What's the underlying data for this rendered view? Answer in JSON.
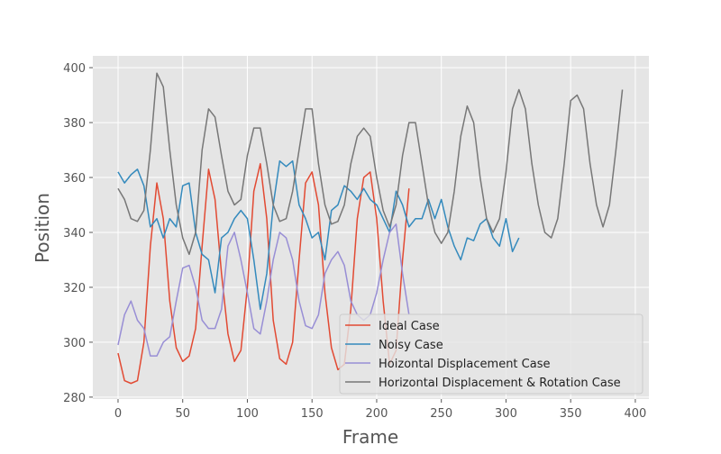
{
  "chart_data": {
    "type": "line",
    "xlabel": "Frame",
    "ylabel": "Position",
    "xlim": [
      -19.5,
      410.5
    ],
    "ylim": [
      279.3,
      404.3
    ],
    "xticks": [
      0,
      50,
      100,
      150,
      200,
      250,
      300,
      350,
      400
    ],
    "yticks": [
      280,
      300,
      320,
      340,
      360,
      380,
      400
    ],
    "grid": true,
    "legend": "lower right",
    "series": [
      {
        "name": "Ideal Case",
        "color": "#E24A33",
        "x": [
          0,
          5,
          10,
          15,
          20,
          25,
          30,
          35,
          40,
          45,
          50,
          55,
          60,
          65,
          70,
          75,
          80,
          85,
          90,
          95,
          100,
          105,
          110,
          115,
          120,
          125,
          130,
          135,
          140,
          145,
          150,
          155,
          160,
          165,
          170,
          175,
          180,
          185,
          190,
          195,
          200,
          205,
          210,
          215,
          220,
          225
        ],
        "values": [
          296,
          286,
          285,
          286,
          300,
          335,
          358,
          345,
          315,
          298,
          293,
          295,
          305,
          335,
          363,
          352,
          325,
          303,
          293,
          297,
          320,
          355,
          365,
          345,
          308,
          294,
          292,
          300,
          330,
          358,
          362,
          350,
          318,
          298,
          290,
          292,
          312,
          345,
          360,
          362,
          345,
          315,
          292,
          297,
          330,
          356
        ]
      },
      {
        "name": "Noisy Case",
        "color": "#348ABD",
        "x": [
          0,
          5,
          10,
          15,
          20,
          25,
          30,
          35,
          40,
          45,
          50,
          55,
          60,
          65,
          70,
          75,
          80,
          85,
          90,
          95,
          100,
          105,
          110,
          115,
          120,
          125,
          130,
          135,
          140,
          145,
          150,
          155,
          160,
          165,
          170,
          175,
          180,
          185,
          190,
          195,
          200,
          205,
          210,
          215,
          220,
          225,
          230,
          235,
          240,
          245,
          250,
          255,
          260,
          265,
          270,
          275,
          280,
          285,
          290,
          295,
          300,
          305,
          310
        ],
        "values": [
          362,
          358,
          361,
          363,
          357,
          342,
          345,
          338,
          345,
          342,
          357,
          358,
          340,
          332,
          330,
          318,
          338,
          340,
          345,
          348,
          345,
          330,
          312,
          325,
          350,
          366,
          364,
          366,
          350,
          345,
          338,
          340,
          330,
          348,
          350,
          357,
          355,
          352,
          356,
          352,
          350,
          345,
          340,
          355,
          350,
          342,
          345,
          345,
          352,
          345,
          352,
          342,
          335,
          330,
          338,
          337,
          343,
          345,
          338,
          335,
          345,
          333,
          338
        ]
      },
      {
        "name": "Hoizontal Displacement Case",
        "color": "#988ED5",
        "x": [
          0,
          5,
          10,
          15,
          20,
          25,
          30,
          35,
          40,
          45,
          50,
          55,
          60,
          65,
          70,
          75,
          80,
          85,
          90,
          95,
          100,
          105,
          110,
          115,
          120,
          125,
          130,
          135,
          140,
          145,
          150,
          155,
          160,
          165,
          170,
          175,
          180,
          185,
          190,
          195,
          200,
          205,
          210,
          215,
          220,
          225
        ],
        "values": [
          299,
          310,
          315,
          308,
          305,
          295,
          295,
          300,
          302,
          315,
          327,
          328,
          320,
          308,
          305,
          305,
          312,
          335,
          340,
          330,
          318,
          305,
          303,
          315,
          330,
          340,
          338,
          330,
          315,
          306,
          305,
          310,
          325,
          330,
          333,
          328,
          315,
          310,
          308,
          310,
          318,
          330,
          340,
          343,
          325,
          310
        ]
      },
      {
        "name": "Horizontal Displacement & Rotation Case",
        "color": "#777777",
        "x": [
          0,
          5,
          10,
          15,
          20,
          25,
          30,
          35,
          40,
          45,
          50,
          55,
          60,
          65,
          70,
          75,
          80,
          85,
          90,
          95,
          100,
          105,
          110,
          115,
          120,
          125,
          130,
          135,
          140,
          145,
          150,
          155,
          160,
          165,
          170,
          175,
          180,
          185,
          190,
          195,
          200,
          205,
          210,
          215,
          220,
          225,
          230,
          235,
          240,
          245,
          250,
          255,
          260,
          265,
          270,
          275,
          280,
          285,
          290,
          295,
          300,
          305,
          310,
          315,
          320,
          325,
          330,
          335,
          340,
          345,
          350,
          355,
          360,
          365,
          370,
          375,
          380,
          385,
          390
        ],
        "values": [
          356,
          352,
          345,
          344,
          348,
          370,
          398,
          393,
          370,
          350,
          338,
          332,
          340,
          370,
          385,
          382,
          368,
          355,
          350,
          352,
          368,
          378,
          378,
          365,
          350,
          344,
          345,
          355,
          370,
          385,
          385,
          365,
          350,
          343,
          344,
          350,
          365,
          375,
          378,
          375,
          360,
          348,
          342,
          350,
          368,
          380,
          380,
          365,
          350,
          340,
          336,
          340,
          355,
          375,
          386,
          380,
          360,
          345,
          340,
          345,
          362,
          385,
          392,
          385,
          365,
          350,
          340,
          338,
          345,
          365,
          388,
          390,
          385,
          365,
          350,
          342,
          350,
          370,
          392
        ]
      }
    ]
  }
}
